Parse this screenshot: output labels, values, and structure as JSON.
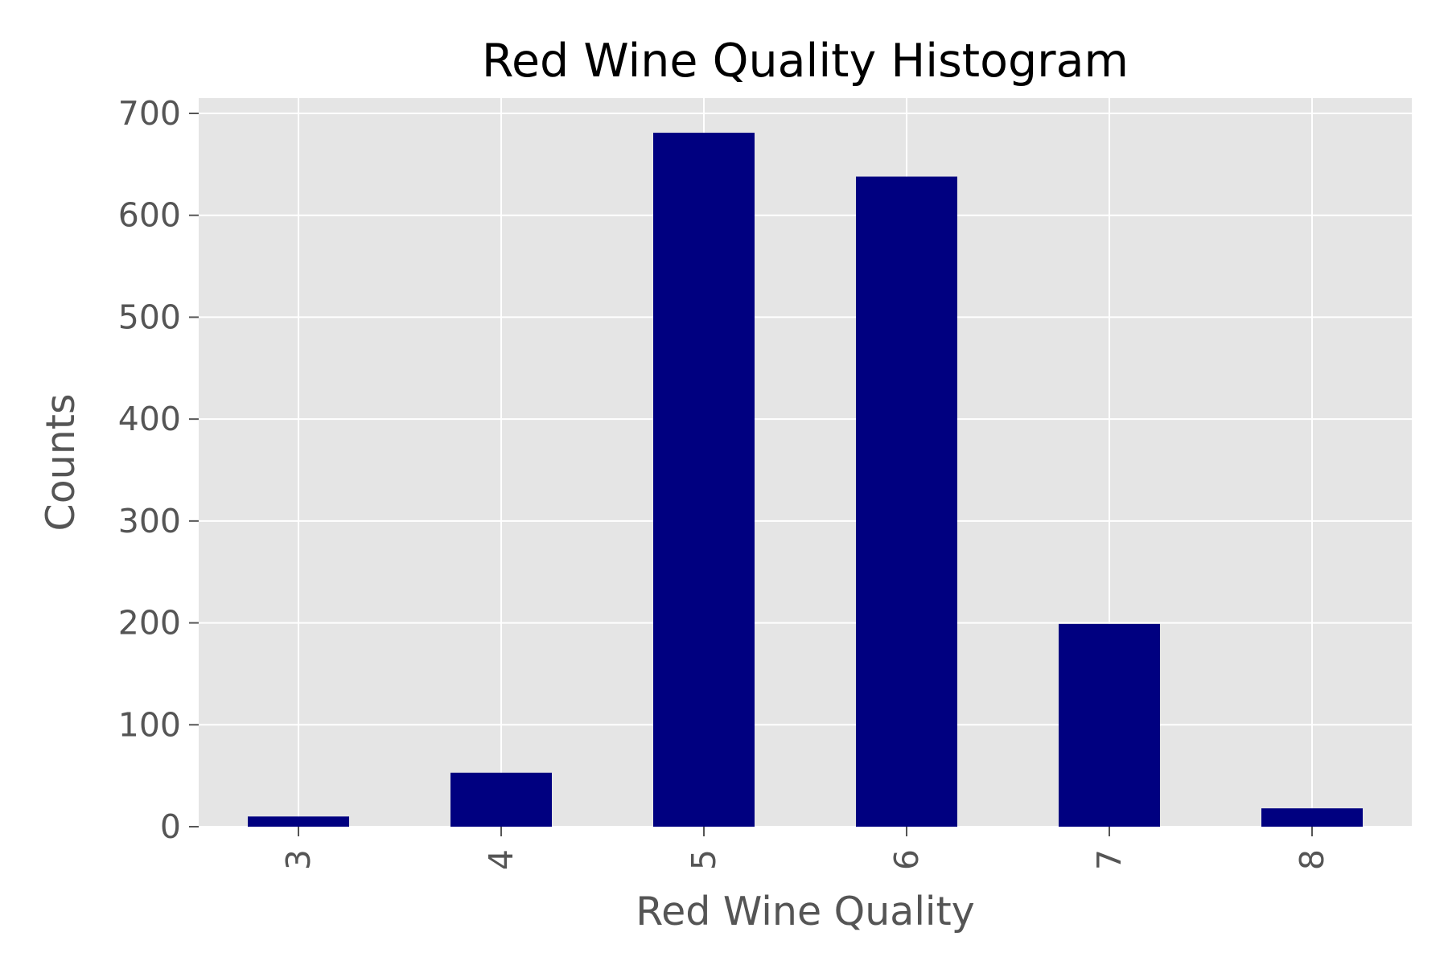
{
  "chart_data": {
    "type": "bar",
    "title": "Red Wine Quality Histogram",
    "xlabel": "Red Wine Quality",
    "ylabel": "Counts",
    "categories": [
      "3",
      "4",
      "5",
      "6",
      "7",
      "8"
    ],
    "values": [
      10,
      53,
      681,
      638,
      199,
      18
    ],
    "ylim": [
      0,
      715
    ],
    "yticks": [
      0,
      100,
      200,
      300,
      400,
      500,
      600,
      700
    ],
    "ytick_labels": [
      "0",
      "100",
      "200",
      "300",
      "400",
      "500",
      "600",
      "700"
    ],
    "xtick_rotation": "vertical",
    "grid": true,
    "legend": "none",
    "colors": {
      "bar": "#000080",
      "plot_background": "#E5E5E5",
      "grid": "#FFFFFF",
      "tick_text": "#555555",
      "title": "#000000"
    }
  }
}
